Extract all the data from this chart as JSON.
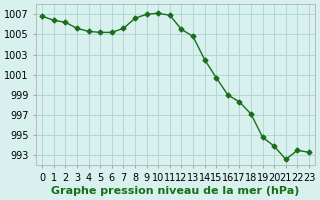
{
  "hours": [
    0,
    1,
    2,
    3,
    4,
    5,
    6,
    7,
    8,
    9,
    10,
    11,
    12,
    13,
    14,
    15,
    16,
    17,
    18,
    19,
    20,
    21,
    22,
    23
  ],
  "pressure": [
    1006.8,
    1006.4,
    1006.2,
    1005.6,
    1005.3,
    1005.2,
    1005.2,
    1005.6,
    1006.6,
    1007.0,
    1007.1,
    1006.9,
    1005.5,
    1004.8,
    1002.5,
    1000.7,
    999.0,
    998.3,
    997.1,
    994.8,
    993.9,
    992.6,
    993.5,
    993.3
  ],
  "line_color": "#1a6e1a",
  "marker_color": "#1a6e1a",
  "bg_color": "#d8f0ee",
  "grid_color": "#b0d8d4",
  "xlabel": "Graphe pression niveau de la mer (hPa)",
  "ylim_min": 992,
  "ylim_max": 1008,
  "yticks": [
    993,
    995,
    997,
    999,
    1001,
    1003,
    1005,
    1007
  ],
  "xtick_labels": [
    "0",
    "1",
    "2",
    "3",
    "4",
    "5",
    "6",
    "7",
    "8",
    "9",
    "10",
    "11",
    "12",
    "13",
    "14",
    "15",
    "16",
    "17",
    "18",
    "19",
    "20",
    "21",
    "22",
    "23"
  ],
  "xlabel_fontsize": 8,
  "tick_fontsize": 7
}
